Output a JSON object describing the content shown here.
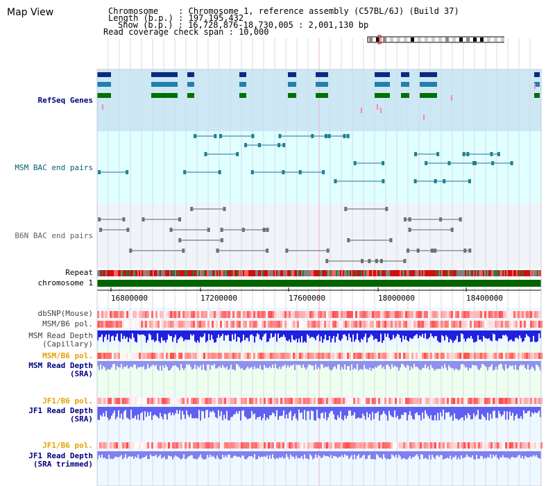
{
  "page_title": "Map View",
  "header": {
    "chromosome_line": "Chromosome    : Chromosome 1, reference assembly (C57BL/6J) (Build 37)",
    "length_line": "Length (b.p.) : 197,195,432",
    "show_line": "Show (b.p.) : 16,728,876-18,730,005 : 2,001,130 bp",
    "span_line": "Read coverage check span : 10,000"
  },
  "tracks": {
    "refseq": "RefSeq Genes",
    "msm_bac": "MSM BAC end pairs",
    "b6n_bac": "B6N BAC end pairs",
    "repeat": "Repeat",
    "chromosome": "chromosome 1",
    "dbsnp": "dbSNP(Mouse)",
    "msm_b6_pol1": "MSM/B6 pol.",
    "msm_depth_cap_1": "MSM Read Depth",
    "msm_depth_cap_2": "(Capillary)",
    "msm_b6_pol2": "MSM/B6 pol.",
    "msm_depth_sra_1": "MSM Read Depth",
    "msm_depth_sra_2": "(SRA)",
    "jf1_pol1": "JF1/B6 pol.",
    "jf1_depth_sra_1": "JF1 Read Depth",
    "jf1_depth_sra_2": "(SRA)",
    "jf1_pol2": "JF1/B6 pol.",
    "jf1_depth_trim_1": "JF1 Read Depth",
    "jf1_depth_trim_2": "(SRA trimmed)"
  },
  "axis_ticks": [
    "16800000",
    "17200000",
    "17600000",
    "18000000",
    "18400000"
  ],
  "colors": {
    "refseq_bg": "#cce8f4",
    "msm_bg": "#e0ffff",
    "b6n_bg": "#f0f4f8",
    "chromosome_bar": "#006400",
    "label_navy": "#000080",
    "label_teal": "#006070",
    "label_gray": "#606060",
    "label_orange": "#e8a000",
    "depth_blue": "#3030e0"
  }
}
